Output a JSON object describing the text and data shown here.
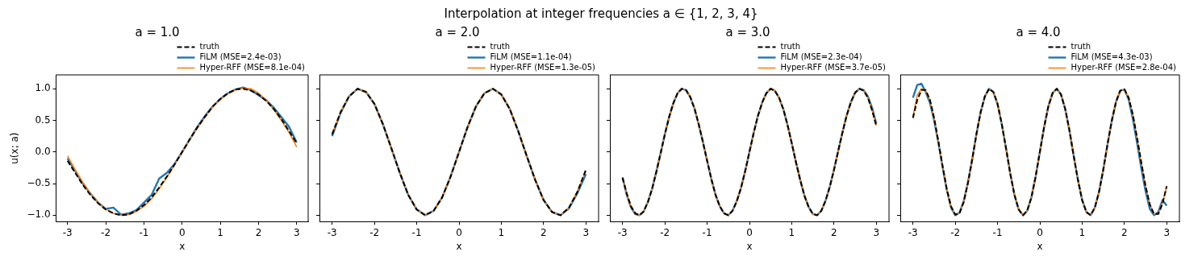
{
  "chart_data": [
    {
      "type": "line",
      "title": "a = 1.0",
      "annotations": [
        "Interpolation at integer frequencies a ∈ {1, 2, 3, 4}"
      ],
      "xlabel": "x",
      "ylabel": "u(x; a)",
      "xlim": [
        -3.3,
        3.3
      ],
      "ylim": [
        -1.1,
        1.22
      ],
      "xticks": [
        -3,
        -2,
        -1,
        0,
        1,
        2,
        3
      ],
      "yticks": [
        {
          "value": -1,
          "label": "−1.0"
        },
        {
          "value": -0.5,
          "label": "−0.5"
        },
        {
          "value": 0,
          "label": "0.0"
        },
        {
          "value": 0.5,
          "label": "0.5"
        },
        {
          "value": 1,
          "label": "1.0"
        }
      ],
      "grid": false,
      "legend": "top right",
      "marker": "none",
      "x": [
        -3,
        -2.8,
        -2.6,
        -2.4,
        -2.2,
        -2,
        -1.8,
        -1.6,
        -1.4,
        -1.2,
        -1,
        -0.8,
        -0.6,
        -0.4,
        -0.2,
        0,
        0.2,
        0.4,
        0.6,
        0.8,
        1,
        1.2,
        1.4,
        1.6,
        1.8,
        2,
        2.2,
        2.4,
        2.6,
        2.8,
        3
      ],
      "series": [
        {
          "name": "truth",
          "color": "#000000",
          "line_style": "dashed",
          "values": [
            -0.14,
            -0.33,
            -0.52,
            -0.68,
            -0.81,
            -0.91,
            -0.97,
            -1.0,
            -0.99,
            -0.93,
            -0.84,
            -0.72,
            -0.56,
            -0.39,
            -0.2,
            0,
            0.2,
            0.39,
            0.56,
            0.72,
            0.84,
            0.93,
            0.99,
            1.0,
            0.97,
            0.91,
            0.81,
            0.68,
            0.52,
            0.33,
            0.14
          ]
        },
        {
          "name": "FiLM (MSE=2.4e-03)",
          "color": "#1f77b4",
          "line_style": "solid",
          "values": [
            -0.1,
            -0.3,
            -0.5,
            -0.66,
            -0.8,
            -0.9,
            -0.88,
            -0.99,
            -0.97,
            -0.92,
            -0.8,
            -0.68,
            -0.42,
            -0.33,
            -0.19,
            0,
            0.2,
            0.4,
            0.57,
            0.72,
            0.84,
            0.93,
            0.99,
            1.02,
            0.98,
            0.9,
            0.82,
            0.7,
            0.55,
            0.4,
            0.15
          ]
        },
        {
          "name": "Hyper-RFF (MSE=8.1e-04)",
          "color": "#ff7f0e",
          "line_style": "solid",
          "values": [
            -0.06,
            -0.28,
            -0.48,
            -0.66,
            -0.8,
            -0.9,
            -0.97,
            -1.0,
            -0.99,
            -0.94,
            -0.86,
            -0.74,
            -0.58,
            -0.4,
            -0.2,
            0,
            0.2,
            0.38,
            0.55,
            0.71,
            0.83,
            0.92,
            0.98,
            1.01,
            1.0,
            0.93,
            0.82,
            0.67,
            0.5,
            0.31,
            0.08
          ]
        }
      ]
    },
    {
      "type": "line",
      "title": "a = 2.0",
      "xlabel": "x",
      "tick_labels": "x",
      "xlim": [
        -3.3,
        3.3
      ],
      "ylim": [
        -1.1,
        1.22
      ],
      "xticks": [
        -3,
        -2,
        -1,
        0,
        1,
        2,
        3
      ],
      "yticks": [
        {
          "value": -1,
          "label": null
        },
        {
          "value": -0.5,
          "label": null
        },
        {
          "value": 0,
          "label": null
        },
        {
          "value": 0.5,
          "label": null
        },
        {
          "value": 1,
          "label": null
        }
      ],
      "grid": false,
      "legend": "top right",
      "marker": "none",
      "x": [
        -3,
        -2.8,
        -2.6,
        -2.4,
        -2.2,
        -2,
        -1.8,
        -1.6,
        -1.4,
        -1.2,
        -1,
        -0.8,
        -0.6,
        -0.4,
        -0.2,
        0,
        0.2,
        0.4,
        0.6,
        0.8,
        1,
        1.2,
        1.4,
        1.6,
        1.8,
        2,
        2.2,
        2.4,
        2.6,
        2.8,
        3
      ],
      "series": [
        {
          "name": "truth",
          "color": "#000000",
          "line_style": "dashed",
          "values": [
            0.28,
            0.63,
            0.88,
            1.0,
            0.95,
            0.76,
            0.44,
            0.06,
            -0.33,
            -0.68,
            -0.91,
            -1.0,
            -0.93,
            -0.72,
            -0.39,
            0,
            0.39,
            0.72,
            0.93,
            1.0,
            0.91,
            0.68,
            0.33,
            -0.06,
            -0.44,
            -0.76,
            -0.95,
            -1.0,
            -0.88,
            -0.63,
            -0.28
          ]
        },
        {
          "name": "FiLM (MSE=1.1e-04)",
          "color": "#1f77b4",
          "line_style": "solid",
          "values": [
            0.25,
            0.62,
            0.88,
            1.0,
            0.95,
            0.76,
            0.44,
            0.06,
            -0.33,
            -0.68,
            -0.91,
            -1.0,
            -0.93,
            -0.72,
            -0.39,
            0,
            0.39,
            0.72,
            0.93,
            1.0,
            0.91,
            0.68,
            0.33,
            -0.06,
            -0.44,
            -0.76,
            -0.95,
            -1.0,
            -0.89,
            -0.65,
            -0.35
          ]
        },
        {
          "name": "Hyper-RFF (MSE=1.3e-05)",
          "color": "#ff7f0e",
          "line_style": "solid",
          "values": [
            0.29,
            0.63,
            0.88,
            1.0,
            0.95,
            0.76,
            0.44,
            0.06,
            -0.33,
            -0.68,
            -0.91,
            -1.0,
            -0.93,
            -0.72,
            -0.39,
            0,
            0.39,
            0.72,
            0.93,
            1.0,
            0.91,
            0.68,
            0.33,
            -0.06,
            -0.44,
            -0.76,
            -0.95,
            -1.0,
            -0.88,
            -0.62,
            -0.3
          ]
        }
      ]
    },
    {
      "type": "line",
      "title": "a = 3.0",
      "xlabel": "x",
      "tick_labels": "x",
      "xlim": [
        -3.3,
        3.3
      ],
      "ylim": [
        -1.1,
        1.22
      ],
      "xticks": [
        -3,
        -2,
        -1,
        0,
        1,
        2,
        3
      ],
      "yticks": [
        {
          "value": -1,
          "label": null
        },
        {
          "value": -0.5,
          "label": null
        },
        {
          "value": 0,
          "label": null
        },
        {
          "value": 0.5,
          "label": null
        },
        {
          "value": 1,
          "label": null
        }
      ],
      "grid": false,
      "legend": "top right",
      "marker": "none",
      "x": [
        -3,
        -2.9,
        -2.8,
        -2.7,
        -2.6,
        -2.5,
        -2.4,
        -2.3,
        -2.2,
        -2.1,
        -2,
        -1.9,
        -1.8,
        -1.7,
        -1.6,
        -1.5,
        -1.4,
        -1.3,
        -1.2,
        -1.1,
        -1,
        -0.9,
        -0.8,
        -0.7,
        -0.6,
        -0.5,
        -0.4,
        -0.3,
        -0.2,
        -0.1,
        0,
        0.1,
        0.2,
        0.3,
        0.4,
        0.5,
        0.6,
        0.7,
        0.8,
        0.9,
        1,
        1.1,
        1.2,
        1.3,
        1.4,
        1.5,
        1.6,
        1.7,
        1.8,
        1.9,
        2,
        2.1,
        2.2,
        2.3,
        2.4,
        2.5,
        2.6,
        2.7,
        2.8,
        2.9,
        3
      ],
      "series": [
        {
          "name": "truth",
          "color": "#000000",
          "line_style": "dashed",
          "values": [
            -0.41,
            -0.66,
            -0.86,
            -0.97,
            -1.0,
            -0.94,
            -0.79,
            -0.58,
            -0.31,
            -0.02,
            0.28,
            0.55,
            0.77,
            0.93,
            1.0,
            0.98,
            0.87,
            0.69,
            0.44,
            0.16,
            -0.14,
            -0.43,
            -0.68,
            -0.86,
            -0.97,
            -1.0,
            -0.93,
            -0.78,
            -0.57,
            -0.3,
            0,
            0.3,
            0.57,
            0.78,
            0.93,
            1.0,
            0.97,
            0.86,
            0.68,
            0.43,
            0.14,
            -0.16,
            -0.44,
            -0.69,
            -0.87,
            -0.98,
            -1.0,
            -0.93,
            -0.77,
            -0.55,
            -0.28,
            0.02,
            0.31,
            0.58,
            0.79,
            0.94,
            1.0,
            0.97,
            0.86,
            0.66,
            0.41
          ]
        },
        {
          "name": "FiLM (MSE=2.3e-04)",
          "color": "#1f77b4",
          "line_style": "solid",
          "values": [
            -0.4,
            -0.68,
            -0.88,
            -0.98,
            -1.0,
            -0.94,
            -0.79,
            -0.58,
            -0.31,
            -0.02,
            0.28,
            0.55,
            0.77,
            0.93,
            1.0,
            0.98,
            0.87,
            0.69,
            0.44,
            0.16,
            -0.14,
            -0.43,
            -0.68,
            -0.86,
            -0.97,
            -1.0,
            -0.93,
            -0.78,
            -0.57,
            -0.3,
            0,
            0.3,
            0.57,
            0.78,
            0.93,
            1.0,
            0.97,
            0.86,
            0.68,
            0.43,
            0.14,
            -0.16,
            -0.44,
            -0.69,
            -0.87,
            -0.98,
            -1.0,
            -0.93,
            -0.77,
            -0.55,
            -0.28,
            0.02,
            0.31,
            0.58,
            0.79,
            0.94,
            1.0,
            0.98,
            0.88,
            0.7,
            0.45
          ]
        },
        {
          "name": "Hyper-RFF (MSE=3.7e-05)",
          "color": "#ff7f0e",
          "line_style": "solid",
          "values": [
            -0.42,
            -0.67,
            -0.86,
            -0.97,
            -1.0,
            -0.94,
            -0.79,
            -0.58,
            -0.31,
            -0.02,
            0.28,
            0.55,
            0.77,
            0.93,
            1.0,
            0.98,
            0.87,
            0.69,
            0.44,
            0.16,
            -0.14,
            -0.43,
            -0.68,
            -0.86,
            -0.97,
            -1.0,
            -0.93,
            -0.78,
            -0.57,
            -0.3,
            0,
            0.3,
            0.57,
            0.78,
            0.93,
            1.0,
            0.97,
            0.86,
            0.68,
            0.43,
            0.14,
            -0.16,
            -0.44,
            -0.69,
            -0.87,
            -0.98,
            -1.0,
            -0.93,
            -0.77,
            -0.55,
            -0.28,
            0.02,
            0.31,
            0.58,
            0.79,
            0.94,
            1.0,
            0.97,
            0.86,
            0.66,
            0.42
          ]
        }
      ]
    },
    {
      "type": "line",
      "title": "a = 4.0",
      "xlabel": "x",
      "tick_labels": "x",
      "xlim": [
        -3.3,
        3.3
      ],
      "ylim": [
        -1.1,
        1.22
      ],
      "xticks": [
        -3,
        -2,
        -1,
        0,
        1,
        2,
        3
      ],
      "yticks": [
        {
          "value": -1,
          "label": null
        },
        {
          "value": -0.5,
          "label": null
        },
        {
          "value": 0,
          "label": null
        },
        {
          "value": 0.5,
          "label": null
        },
        {
          "value": 1,
          "label": null
        }
      ],
      "grid": false,
      "legend": "top right",
      "marker": "none",
      "x": [
        -3,
        -2.9,
        -2.8,
        -2.7,
        -2.6,
        -2.5,
        -2.4,
        -2.3,
        -2.2,
        -2.1,
        -2,
        -1.9,
        -1.8,
        -1.7,
        -1.6,
        -1.5,
        -1.4,
        -1.3,
        -1.2,
        -1.1,
        -1,
        -0.9,
        -0.8,
        -0.7,
        -0.6,
        -0.5,
        -0.4,
        -0.3,
        -0.2,
        -0.1,
        0,
        0.1,
        0.2,
        0.3,
        0.4,
        0.5,
        0.6,
        0.7,
        0.8,
        0.9,
        1,
        1.1,
        1.2,
        1.3,
        1.4,
        1.5,
        1.6,
        1.7,
        1.8,
        1.9,
        2,
        2.1,
        2.2,
        2.3,
        2.4,
        2.5,
        2.6,
        2.7,
        2.8,
        2.9,
        3
      ],
      "series": [
        {
          "name": "truth",
          "color": "#000000",
          "line_style": "dashed",
          "values": [
            0.54,
            0.82,
            0.98,
            0.98,
            0.83,
            0.54,
            0.17,
            -0.22,
            -0.59,
            -0.86,
            -0.99,
            -0.97,
            -0.79,
            -0.49,
            -0.12,
            0.28,
            0.63,
            0.88,
            1.0,
            0.95,
            0.76,
            0.44,
            0.06,
            -0.34,
            -0.68,
            -0.91,
            -1.0,
            -0.93,
            -0.72,
            -0.39,
            0,
            0.39,
            0.72,
            0.93,
            1.0,
            0.91,
            0.68,
            0.34,
            -0.06,
            -0.44,
            -0.76,
            -0.95,
            -1.0,
            -0.88,
            -0.63,
            -0.28,
            0.12,
            0.49,
            0.79,
            0.97,
            0.99,
            0.86,
            0.59,
            0.22,
            -0.17,
            -0.54,
            -0.83,
            -0.98,
            -0.98,
            -0.82,
            -0.54
          ]
        },
        {
          "name": "FiLM (MSE=4.3e-03)",
          "color": "#1f77b4",
          "line_style": "solid",
          "values": [
            0.86,
            1.06,
            1.08,
            0.95,
            0.78,
            0.5,
            0.15,
            -0.24,
            -0.6,
            -0.88,
            -1.0,
            -0.96,
            -0.78,
            -0.48,
            -0.12,
            0.28,
            0.63,
            0.88,
            1.0,
            0.95,
            0.76,
            0.44,
            0.06,
            -0.34,
            -0.68,
            -0.91,
            -1.0,
            -0.93,
            -0.72,
            -0.39,
            0,
            0.39,
            0.72,
            0.93,
            1.0,
            0.91,
            0.68,
            0.34,
            -0.06,
            -0.44,
            -0.76,
            -0.95,
            -1.0,
            -0.88,
            -0.63,
            -0.28,
            0.12,
            0.49,
            0.79,
            0.97,
            0.99,
            0.83,
            0.52,
            0.14,
            -0.26,
            -0.62,
            -0.9,
            -1.0,
            -0.95,
            -0.76,
            -0.85
          ]
        },
        {
          "name": "Hyper-RFF (MSE=2.8e-04)",
          "color": "#ff7f0e",
          "line_style": "solid",
          "values": [
            0.56,
            0.9,
            1.0,
            0.97,
            0.82,
            0.53,
            0.17,
            -0.22,
            -0.59,
            -0.86,
            -0.99,
            -0.97,
            -0.79,
            -0.49,
            -0.12,
            0.28,
            0.63,
            0.88,
            1.0,
            0.95,
            0.76,
            0.44,
            0.06,
            -0.34,
            -0.68,
            -0.91,
            -1.0,
            -0.93,
            -0.72,
            -0.39,
            0,
            0.39,
            0.72,
            0.93,
            1.0,
            0.91,
            0.68,
            0.34,
            -0.06,
            -0.44,
            -0.76,
            -0.95,
            -1.0,
            -0.88,
            -0.63,
            -0.28,
            0.12,
            0.49,
            0.79,
            0.97,
            0.99,
            0.86,
            0.59,
            0.22,
            -0.17,
            -0.54,
            -0.83,
            -0.98,
            -0.98,
            -0.8,
            -0.55
          ]
        }
      ]
    }
  ]
}
